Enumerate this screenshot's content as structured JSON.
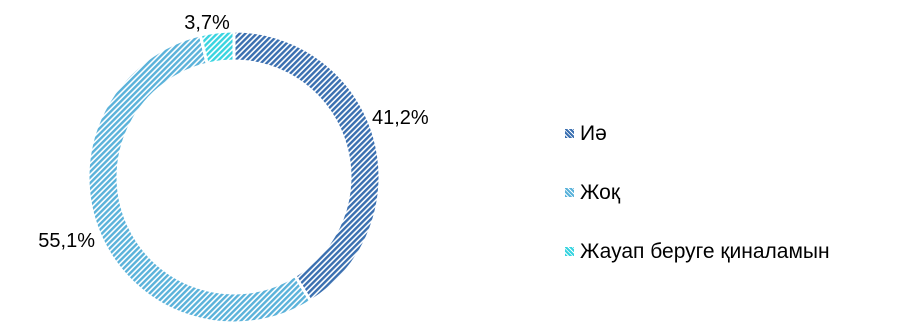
{
  "chart_data": {
    "type": "pie",
    "style": "doughnut",
    "categories": [
      "Иә",
      "Жоқ",
      "Жауап беруге қиналамын"
    ],
    "values": [
      41.2,
      55.1,
      3.7
    ],
    "labels": [
      "41,2%",
      "55,1%",
      "3,7%"
    ],
    "colors": [
      "#3a6fb0",
      "#5ab2da",
      "#38d4e0"
    ],
    "pattern": "diagonal-hatch",
    "legend": "right"
  }
}
